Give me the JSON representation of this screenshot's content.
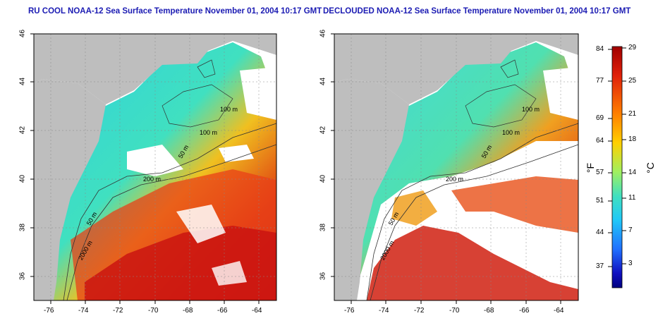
{
  "titles": {
    "left": "RU COOL NOAA-12 Sea Surface Temperature November 01, 2004 10:17 GMT",
    "right": "DECLOUDED NOAA-12 Sea Surface Temperature November 01, 2004 10:17 GMT"
  },
  "axes": {
    "x_ticks": [
      "-76",
      "-74",
      "-72",
      "-70",
      "-68",
      "-66",
      "-64"
    ],
    "y_ticks": [
      "46",
      "44",
      "42",
      "40",
      "38",
      "36"
    ],
    "lon_range": [
      -77,
      -63
    ],
    "lat_range": [
      35,
      46
    ]
  },
  "contour_labels": {
    "left": [
      "100 m",
      "100 m",
      "50 m",
      "200 m",
      "50 m",
      "2000 m"
    ],
    "right": [
      "100 m",
      "100 m",
      "50 m",
      "200 m",
      "50 m",
      "2000 m"
    ]
  },
  "colorbar": {
    "fahrenheit_ticks": [
      "84",
      "77",
      "69",
      "64",
      "57",
      "51",
      "44",
      "37"
    ],
    "celsius_ticks": [
      "29",
      "25",
      "21",
      "18",
      "14",
      "11",
      "7",
      "3"
    ],
    "fahrenheit_unit": "°F",
    "celsius_unit": "°C",
    "colors": [
      "#a00000",
      "#e0200a",
      "#ff8000",
      "#ffd000",
      "#c8f050",
      "#60e0a0",
      "#30d0f0",
      "#2080ff",
      "#1020c0",
      "#000080"
    ]
  },
  "colors": {
    "land": "#bebebe",
    "cloud": "#ffffff",
    "title": "#1b1bb3"
  }
}
